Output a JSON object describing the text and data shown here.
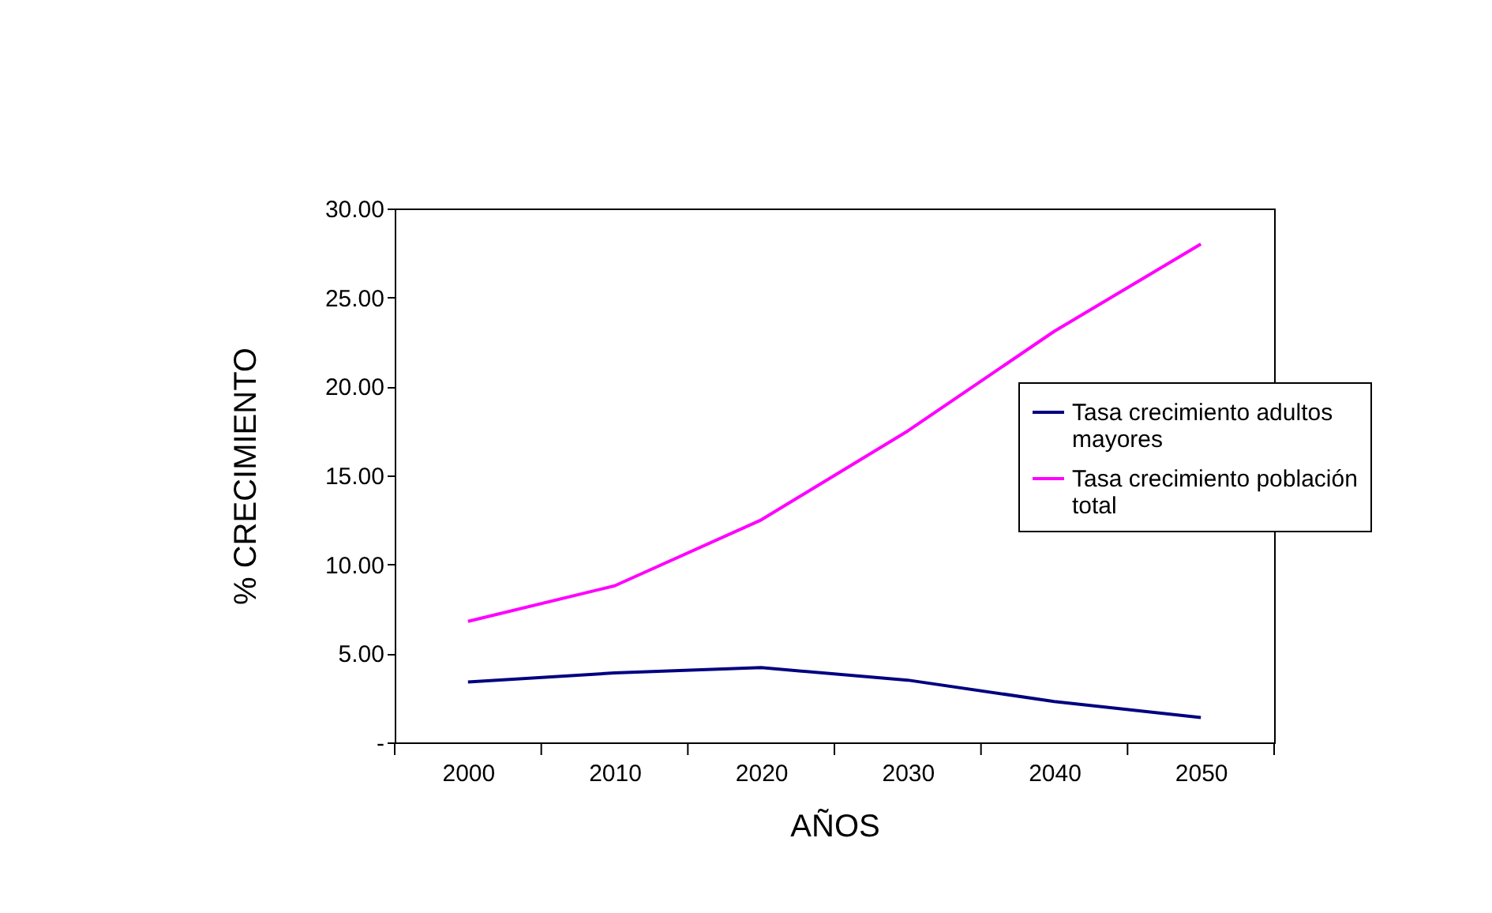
{
  "chart_data": {
    "type": "line",
    "xlabel": "AÑOS",
    "ylabel": "% CRECIMIENTO",
    "categories": [
      "2000",
      "2010",
      "2020",
      "2030",
      "2040",
      "2050"
    ],
    "series": [
      {
        "name": "Tasa crecimiento adultos mayores",
        "color": "#000080",
        "values": [
          3.4,
          3.9,
          4.2,
          3.5,
          2.3,
          1.4
        ]
      },
      {
        "name": "Tasa crecimiento población total",
        "color": "#ff00ff",
        "values": [
          6.8,
          8.8,
          12.5,
          17.5,
          23.1,
          28.0
        ]
      }
    ],
    "ylim": [
      0,
      30
    ],
    "yticks": [
      {
        "value": 0,
        "label": "-"
      },
      {
        "value": 5,
        "label": "5.00"
      },
      {
        "value": 10,
        "label": "10.00"
      },
      {
        "value": 15,
        "label": "15.00"
      },
      {
        "value": 20,
        "label": "20.00"
      },
      {
        "value": 25,
        "label": "25.00"
      },
      {
        "value": 30,
        "label": "30.00"
      }
    ],
    "grid": false,
    "legend": "right",
    "marker": "none",
    "line_style": "solid"
  }
}
